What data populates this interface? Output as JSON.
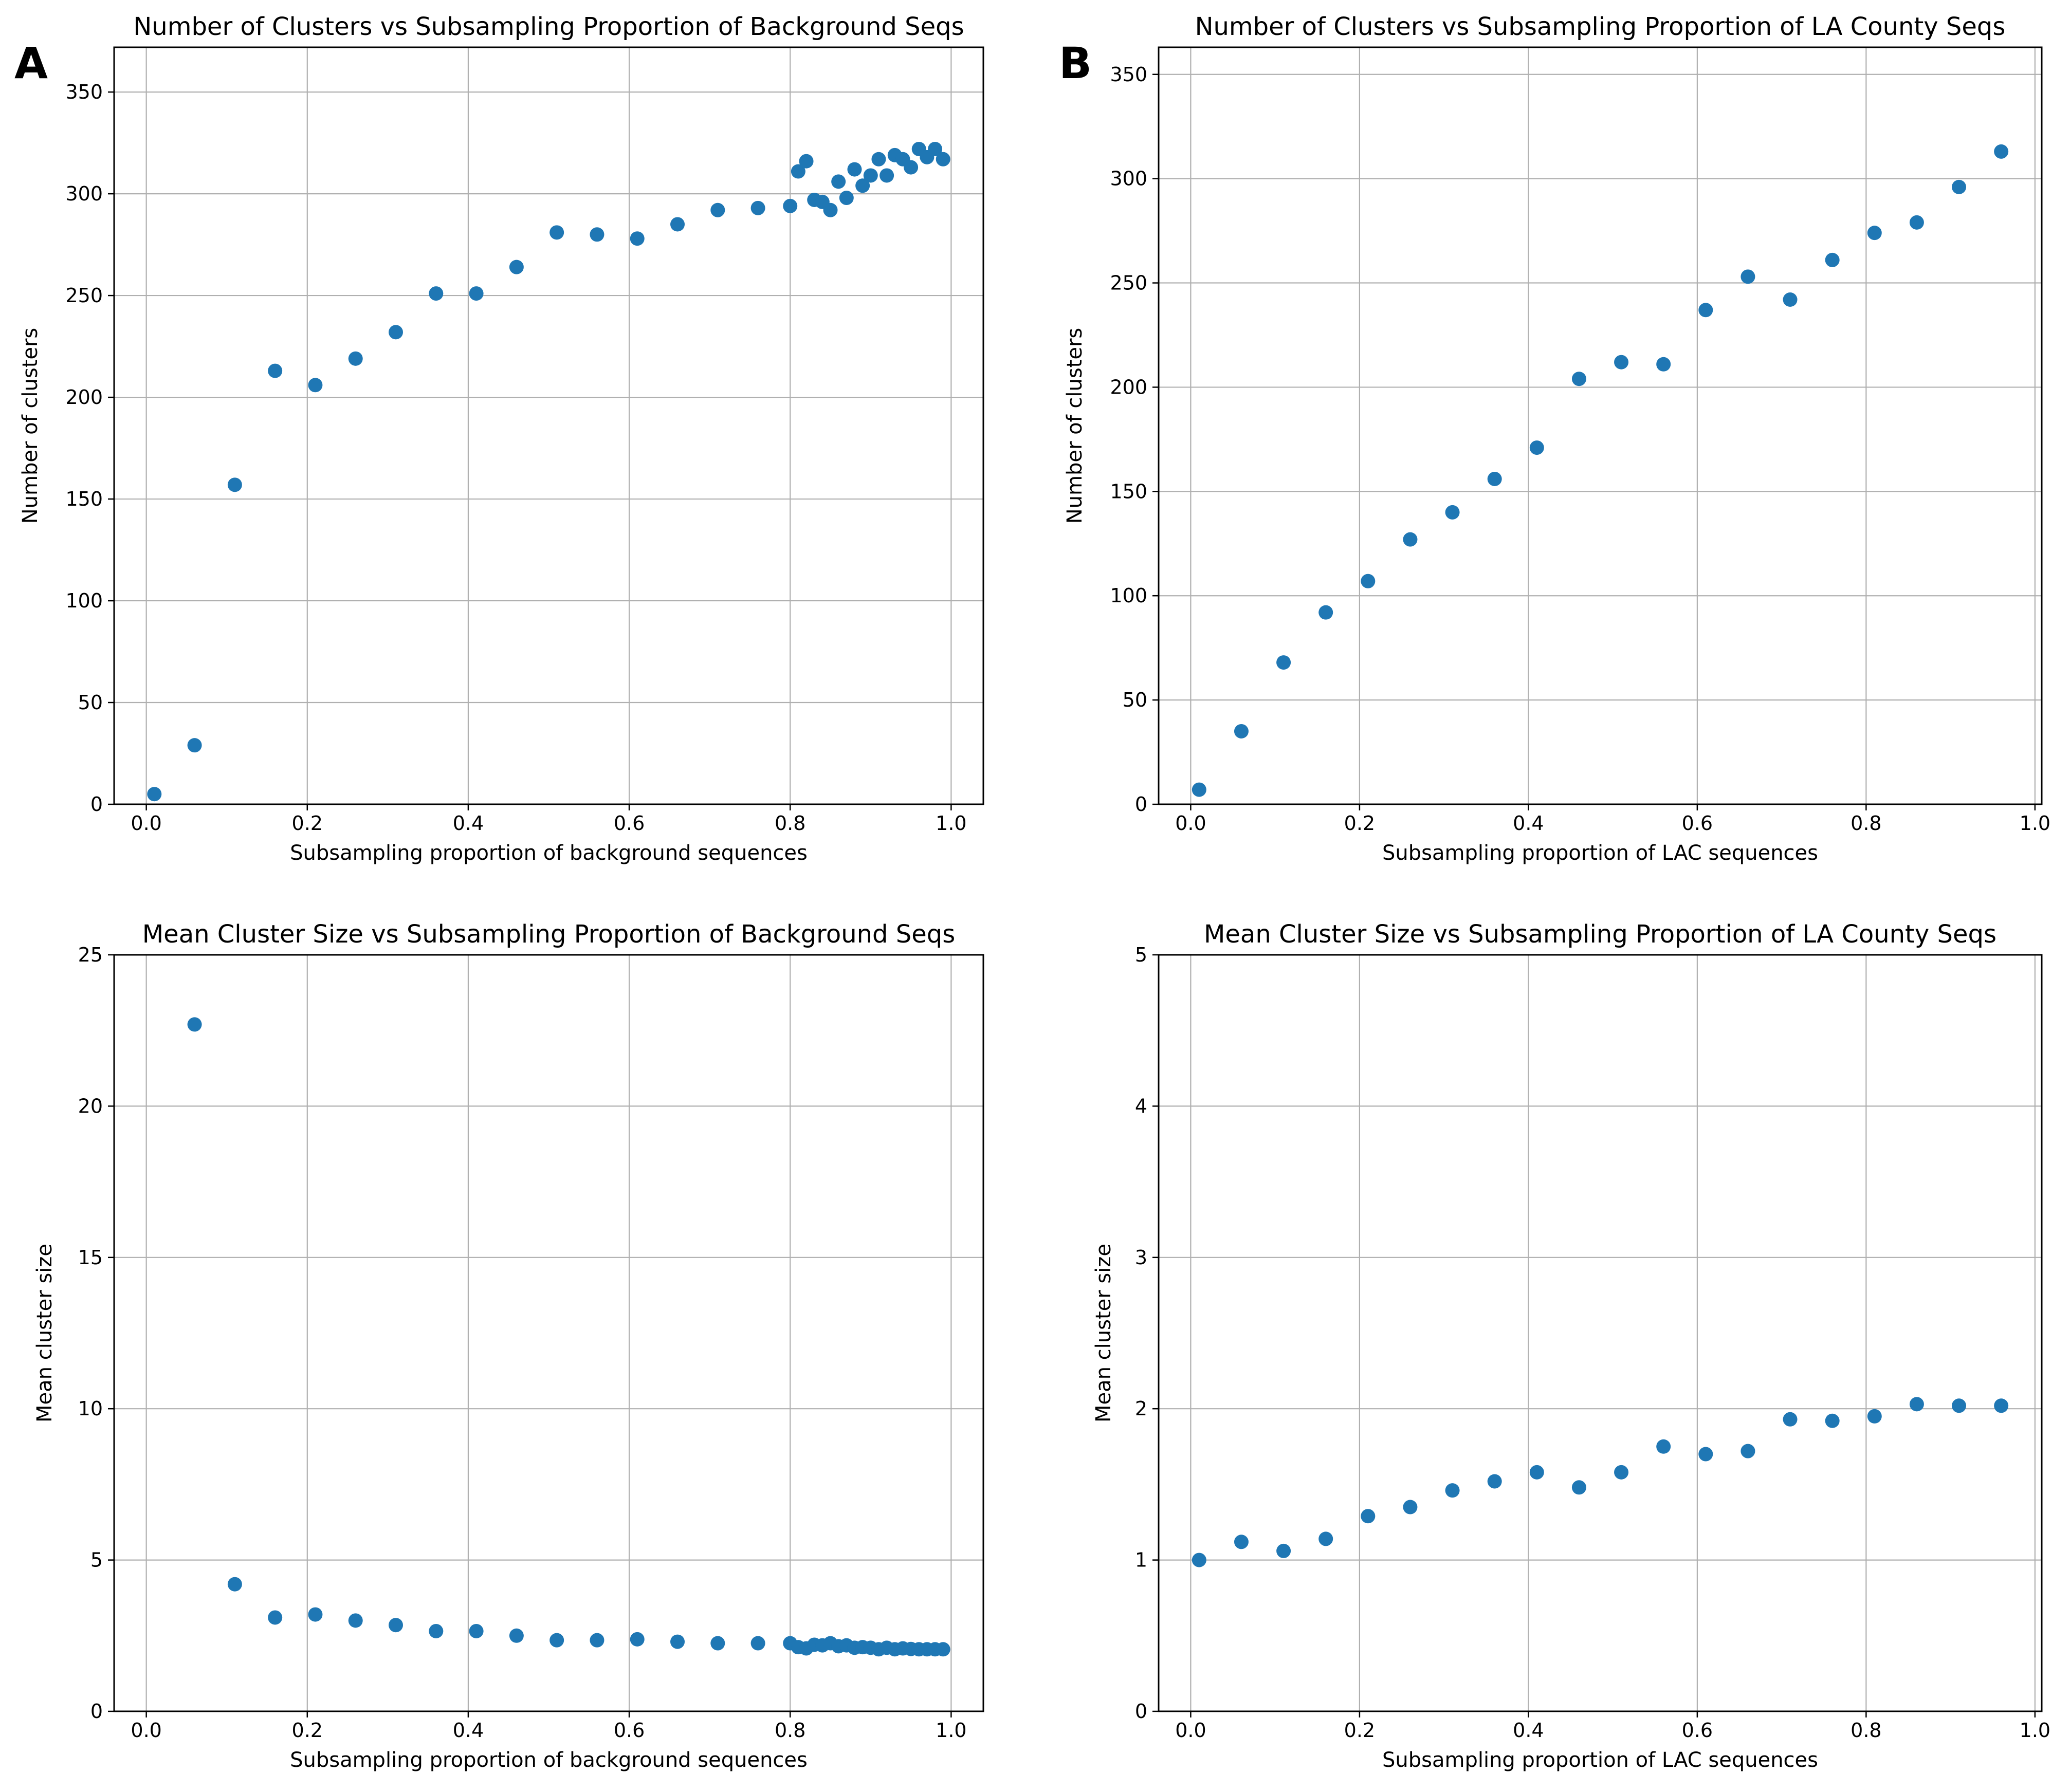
{
  "colors": {
    "marker": "#1f77b4",
    "grid": "#b0b0b0",
    "axes": "#000000"
  },
  "chart_data": [
    {
      "type": "scatter",
      "panel_label": "A",
      "title": "Number of Clusters vs Subsampling Proportion of Background Seqs",
      "xlabel": "Subsampling proportion of background sequences",
      "ylabel": "Number of clusters",
      "xlim": [
        -0.04,
        1.04
      ],
      "ylim": [
        0,
        372
      ],
      "xticks": [
        0.0,
        0.2,
        0.4,
        0.6,
        0.8,
        1.0
      ],
      "xtick_labels": [
        "0.0",
        "0.2",
        "0.4",
        "0.6",
        "0.8",
        "1.0"
      ],
      "yticks": [
        0,
        50,
        100,
        150,
        200,
        250,
        300,
        350
      ],
      "ytick_labels": [
        "0",
        "50",
        "100",
        "150",
        "200",
        "250",
        "300",
        "350"
      ],
      "grid": true,
      "x": [
        0.01,
        0.06,
        0.11,
        0.16,
        0.21,
        0.26,
        0.31,
        0.36,
        0.41,
        0.46,
        0.51,
        0.56,
        0.61,
        0.66,
        0.71,
        0.76,
        0.8,
        0.81,
        0.82,
        0.83,
        0.84,
        0.85,
        0.86,
        0.87,
        0.88,
        0.89,
        0.9,
        0.91,
        0.92,
        0.93,
        0.94,
        0.95,
        0.96,
        0.97,
        0.98,
        0.99
      ],
      "y": [
        5,
        29,
        157,
        213,
        206,
        219,
        232,
        251,
        251,
        264,
        281,
        280,
        278,
        285,
        292,
        293,
        294,
        311,
        316,
        297,
        296,
        292,
        306,
        298,
        312,
        304,
        309,
        317,
        309,
        319,
        317,
        313,
        322,
        318,
        322,
        317
      ]
    },
    {
      "type": "scatter",
      "panel_label": "B",
      "title": "Number of Clusters vs Subsampling Proportion of LA County Seqs",
      "xlabel": "Subsampling proportion of LAC sequences",
      "ylabel": "Number of clusters",
      "xlim": [
        -0.038,
        1.008
      ],
      "ylim": [
        0,
        363
      ],
      "xticks": [
        0.0,
        0.2,
        0.4,
        0.6,
        0.8,
        1.0
      ],
      "xtick_labels": [
        "0.0",
        "0.2",
        "0.4",
        "0.6",
        "0.8",
        "1.0"
      ],
      "yticks": [
        0,
        50,
        100,
        150,
        200,
        250,
        300,
        350
      ],
      "ytick_labels": [
        "0",
        "50",
        "100",
        "150",
        "200",
        "250",
        "300",
        "350"
      ],
      "grid": true,
      "x": [
        0.01,
        0.06,
        0.11,
        0.16,
        0.21,
        0.26,
        0.31,
        0.36,
        0.41,
        0.46,
        0.51,
        0.56,
        0.61,
        0.66,
        0.71,
        0.76,
        0.81,
        0.86,
        0.91,
        0.96
      ],
      "y": [
        7,
        35,
        68,
        92,
        107,
        127,
        140,
        156,
        171,
        204,
        212,
        211,
        237,
        253,
        242,
        261,
        274,
        279,
        296,
        313
      ]
    },
    {
      "type": "scatter",
      "panel_label": "",
      "title": "Mean Cluster Size vs Subsampling Proportion of Background Seqs",
      "xlabel": "Subsampling proportion of background sequences",
      "ylabel": "Mean cluster size",
      "xlim": [
        -0.04,
        1.04
      ],
      "ylim": [
        0,
        25
      ],
      "xticks": [
        0.0,
        0.2,
        0.4,
        0.6,
        0.8,
        1.0
      ],
      "xtick_labels": [
        "0.0",
        "0.2",
        "0.4",
        "0.6",
        "0.8",
        "1.0"
      ],
      "yticks": [
        0,
        5,
        10,
        15,
        20,
        25
      ],
      "ytick_labels": [
        "0",
        "5",
        "10",
        "15",
        "20",
        "25"
      ],
      "grid": true,
      "x": [
        0.06,
        0.11,
        0.16,
        0.21,
        0.26,
        0.31,
        0.36,
        0.41,
        0.46,
        0.51,
        0.56,
        0.61,
        0.66,
        0.71,
        0.76,
        0.8,
        0.81,
        0.82,
        0.83,
        0.84,
        0.85,
        0.86,
        0.87,
        0.88,
        0.89,
        0.9,
        0.91,
        0.92,
        0.93,
        0.94,
        0.95,
        0.96,
        0.97,
        0.98,
        0.99
      ],
      "y": [
        22.7,
        4.2,
        3.1,
        3.2,
        3.0,
        2.85,
        2.65,
        2.65,
        2.5,
        2.35,
        2.35,
        2.38,
        2.3,
        2.25,
        2.25,
        2.25,
        2.12,
        2.08,
        2.2,
        2.18,
        2.25,
        2.15,
        2.18,
        2.1,
        2.12,
        2.1,
        2.05,
        2.1,
        2.05,
        2.08,
        2.06,
        2.05,
        2.05,
        2.05,
        2.05
      ]
    },
    {
      "type": "scatter",
      "panel_label": "",
      "title": "Mean Cluster Size vs Subsampling Proportion of LA County Seqs",
      "xlabel": "Subsampling proportion of LAC sequences",
      "ylabel": "Mean cluster size",
      "xlim": [
        -0.038,
        1.008
      ],
      "ylim": [
        0,
        5
      ],
      "xticks": [
        0.0,
        0.2,
        0.4,
        0.6,
        0.8,
        1.0
      ],
      "xtick_labels": [
        "0.0",
        "0.2",
        "0.4",
        "0.6",
        "0.8",
        "1.0"
      ],
      "yticks": [
        0,
        1,
        2,
        3,
        4,
        5
      ],
      "ytick_labels": [
        "0",
        "1",
        "2",
        "3",
        "4",
        "5"
      ],
      "grid": true,
      "x": [
        0.01,
        0.06,
        0.11,
        0.16,
        0.21,
        0.26,
        0.31,
        0.36,
        0.41,
        0.46,
        0.51,
        0.56,
        0.61,
        0.66,
        0.71,
        0.76,
        0.81,
        0.86,
        0.91,
        0.96
      ],
      "y": [
        1.0,
        1.12,
        1.06,
        1.14,
        1.29,
        1.35,
        1.46,
        1.52,
        1.58,
        1.48,
        1.58,
        1.75,
        1.7,
        1.72,
        1.93,
        1.92,
        1.95,
        2.03,
        2.02,
        2.02
      ]
    }
  ]
}
